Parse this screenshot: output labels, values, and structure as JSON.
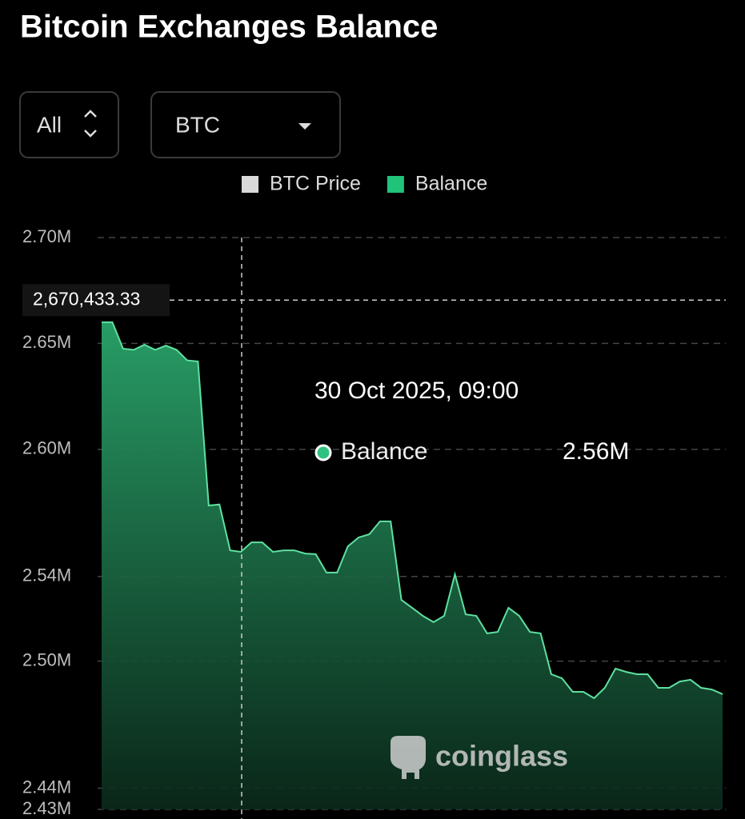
{
  "chart_data": {
    "type": "area",
    "title": "Bitcoin Exchanges Balance",
    "range_selector": "All",
    "unit_selector": "BTC",
    "watermark": "coinglass",
    "categories": [
      null,
      null,
      null,
      null,
      null,
      null,
      null,
      null,
      null,
      null,
      null,
      null,
      null,
      null,
      null,
      null,
      null,
      null,
      null,
      null,
      null,
      null,
      null,
      null,
      null,
      null,
      null,
      null,
      null,
      null,
      null,
      null,
      null,
      null,
      null,
      null,
      null,
      null,
      null,
      null,
      null,
      null,
      null,
      null,
      null,
      null,
      null,
      null,
      null,
      null,
      null,
      null,
      null,
      null,
      null,
      null,
      null,
      null,
      null
    ],
    "series": [
      {
        "name": "BTC Price",
        "color": "#d9d9d9",
        "values": [
          null,
          null,
          null,
          null,
          null,
          null,
          null,
          null,
          null,
          null,
          null,
          null,
          null,
          null,
          null,
          null,
          null,
          null,
          null,
          null,
          null,
          null,
          null,
          null,
          null,
          null,
          null,
          null,
          null,
          null,
          null,
          null,
          null,
          null,
          null,
          null,
          null,
          null,
          null,
          null,
          null,
          null,
          null,
          null,
          null,
          null,
          null,
          null,
          null,
          null,
          null,
          null,
          null,
          null,
          null,
          null,
          null,
          null,
          null
        ]
      },
      {
        "name": "Balance",
        "color": "#1fc37a",
        "values": [
          2660000,
          2660000,
          2647500,
          2647000,
          2649400,
          2647000,
          2649000,
          2647000,
          2642000,
          2641500,
          2573500,
          2574000,
          2552300,
          2551600,
          2556100,
          2556100,
          2551600,
          2552300,
          2552300,
          2550800,
          2550500,
          2541800,
          2541800,
          2554200,
          2558400,
          2559900,
          2566000,
          2566000,
          2528900,
          2525200,
          2521400,
          2518400,
          2521400,
          2541000,
          2522100,
          2521400,
          2513100,
          2513800,
          2525200,
          2521400,
          2513800,
          2513100,
          2493800,
          2491900,
          2485500,
          2485500,
          2482500,
          2487400,
          2496500,
          2494900,
          2493800,
          2493800,
          2487400,
          2487400,
          2490400,
          2491200,
          2487400,
          2486600,
          2484400
        ]
      }
    ],
    "ylim": [
      2430000,
      2700000
    ],
    "yticks": [
      {
        "value": 2700000,
        "label": "2.70M"
      },
      {
        "value": 2650000,
        "label": "2.65M"
      },
      {
        "value": 2600000,
        "label": "2.60M"
      },
      {
        "value": 2540000,
        "label": "2.54M"
      },
      {
        "value": 2500000,
        "label": "2.50M"
      },
      {
        "value": 2440000,
        "label": "2.44M"
      },
      {
        "value": 2430000,
        "label": "2.43M"
      }
    ],
    "grid": true,
    "crosshair": {
      "value": 2670433.33,
      "label": "2,670,433.33"
    },
    "tooltip": {
      "date": "30 Oct 2025, 09:00",
      "value": 2560000,
      "value_label": "2.56M"
    }
  }
}
